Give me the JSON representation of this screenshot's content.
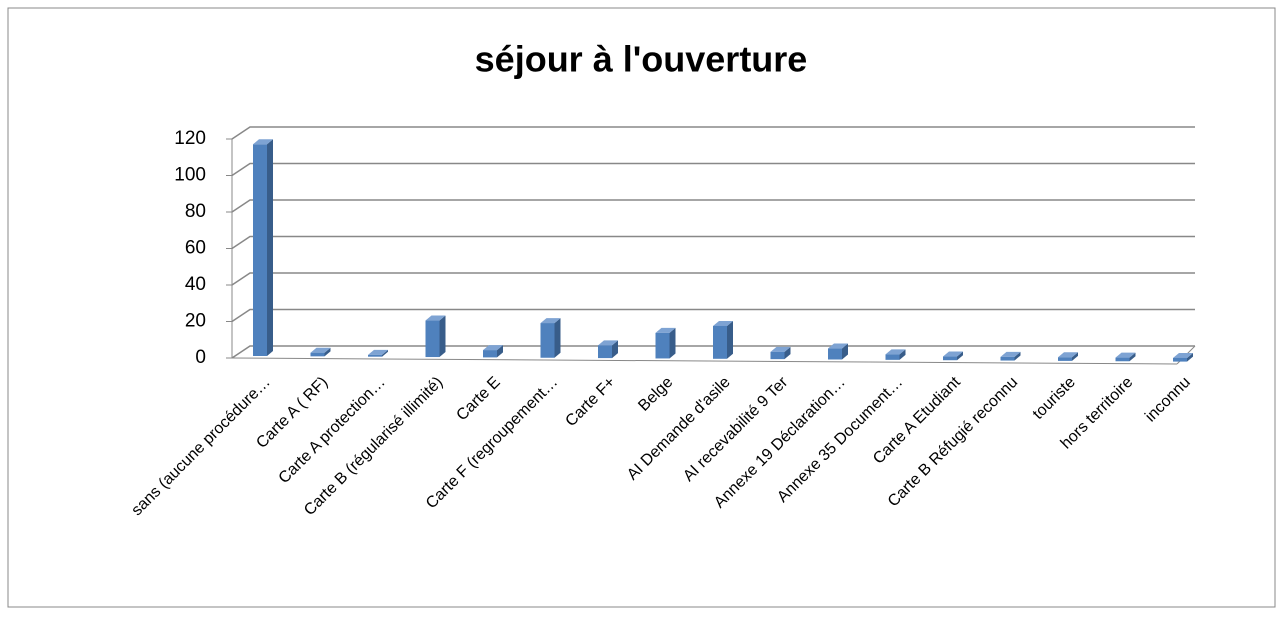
{
  "chart_data": {
    "type": "bar3d",
    "title": "séjour à l'ouverture",
    "categories": [
      "sans (aucune procédure…",
      "Carte A ( RF)",
      "Carte A protection…",
      "Carte B (régularisé illimité)",
      "Carte  E",
      "Carte F (regroupement…",
      "Carte F+",
      "Belge",
      "AI Demande d'asile",
      "AI recevabilité 9 Ter",
      "Annexe 19 Déclaration…",
      "Annexe 35 Document…",
      "Carte A Etudiant",
      "Carte B Réfugié reconnu",
      "touriste",
      "hors territoire",
      "inconnu"
    ],
    "values": [
      116,
      2,
      1,
      20,
      4,
      19,
      7,
      14,
      18,
      4,
      6,
      3,
      2,
      2,
      2,
      2,
      2
    ],
    "color": "#4f81bd",
    "ylim": [
      0,
      120
    ],
    "yticks": [
      0,
      20,
      40,
      60,
      80,
      100,
      120
    ],
    "grid": true
  }
}
